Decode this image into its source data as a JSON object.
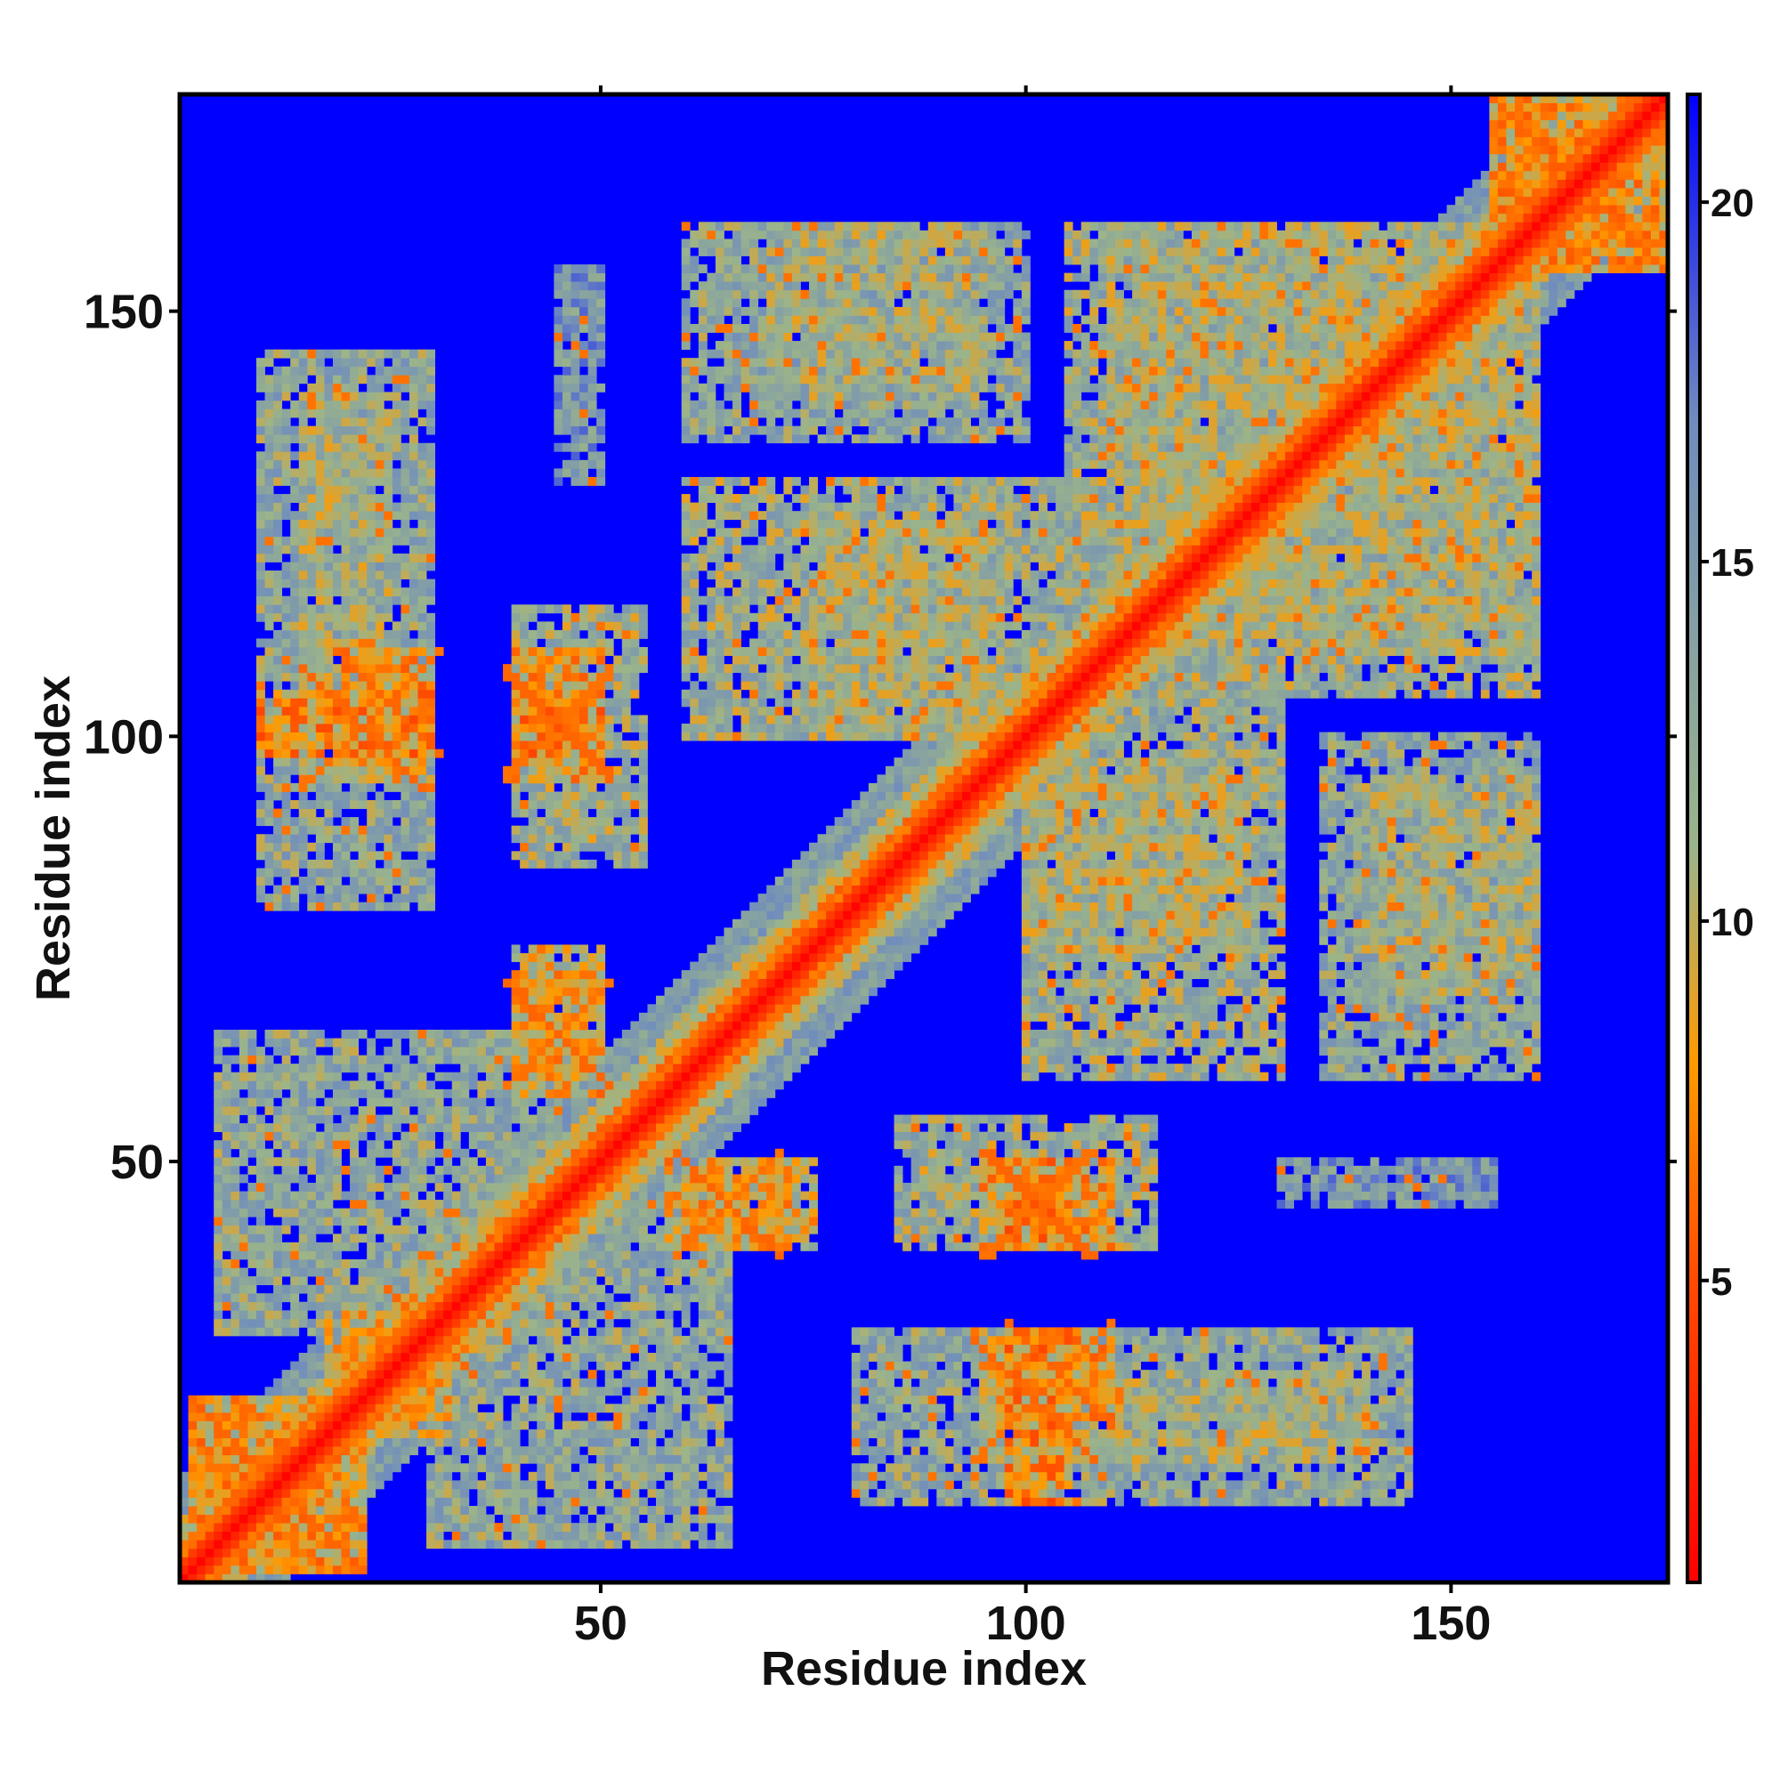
{
  "chart_data": {
    "type": "heatmap",
    "title": "",
    "xlabel": "Residue index",
    "ylabel": "Residue index",
    "n_residues": 175,
    "xlim": [
      1,
      175
    ],
    "ylim": [
      1,
      175
    ],
    "x_ticks": [
      50,
      100,
      150
    ],
    "y_ticks": [
      50,
      100,
      150
    ],
    "colorbar": {
      "min": 0.8,
      "max": 21.5,
      "ticks": [
        5,
        10,
        15,
        20
      ],
      "colors": [
        "#ff0000",
        "#ff4a00",
        "#ff9a00",
        "#9bb48a",
        "#6f8cbe",
        "#0000ff"
      ],
      "stops": [
        0.8,
        5.0,
        8.0,
        11.0,
        17.0,
        21.5
      ]
    },
    "diagonal_band": {
      "min_value": 1.0,
      "width_residues": 7
    },
    "contact_regions": [
      {
        "x": [
          2,
          22
        ],
        "y": [
          2,
          22
        ],
        "value": 9,
        "note": "N-terminal cross"
      },
      {
        "x": [
          20,
          32
        ],
        "y": [
          18,
          32
        ],
        "value": 10
      },
      {
        "x": [
          5,
          45
        ],
        "y": [
          30,
          65
        ],
        "value": 13
      },
      {
        "x": [
          15,
          25
        ],
        "y": [
          95,
          140
        ],
        "value": 12
      },
      {
        "x": [
          10,
          30
        ],
        "y": [
          98,
          105
        ],
        "value": 8,
        "note": "cross near 20,100"
      },
      {
        "x": [
          40,
          55
        ],
        "y": [
          85,
          115
        ],
        "value": 12
      },
      {
        "x": [
          40,
          50
        ],
        "y": [
          98,
          104
        ],
        "value": 8
      },
      {
        "x": [
          40,
          50
        ],
        "y": [
          60,
          75
        ],
        "value": 10
      },
      {
        "x": [
          58,
          72
        ],
        "y": [
          40,
          50
        ],
        "value": 9,
        "note": "cross near 65,45"
      },
      {
        "x": [
          60,
          100
        ],
        "y": [
          135,
          160
        ],
        "value": 13
      },
      {
        "x": [
          75,
          95
        ],
        "y": [
          100,
          125
        ],
        "value": 12
      },
      {
        "x": [
          95,
          110
        ],
        "y": [
          40,
          50
        ],
        "value": 9
      },
      {
        "x": [
          95,
          110
        ],
        "y": [
          20,
          30
        ],
        "value": 9
      },
      {
        "x": [
          80,
          145
        ],
        "y": [
          10,
          30
        ],
        "value": 13
      },
      {
        "x": [
          100,
          130
        ],
        "y": [
          60,
          110
        ],
        "value": 12
      },
      {
        "x": [
          110,
          160
        ],
        "y": [
          105,
          160
        ],
        "value": 12
      },
      {
        "x": [
          140,
          160
        ],
        "y": [
          70,
          95
        ],
        "value": 12
      },
      {
        "x": [
          130,
          155
        ],
        "y": [
          45,
          50
        ],
        "value": 15
      },
      {
        "x": [
          155,
          175
        ],
        "y": [
          155,
          175
        ],
        "value": 9,
        "note": "C-terminal cross"
      }
    ]
  }
}
